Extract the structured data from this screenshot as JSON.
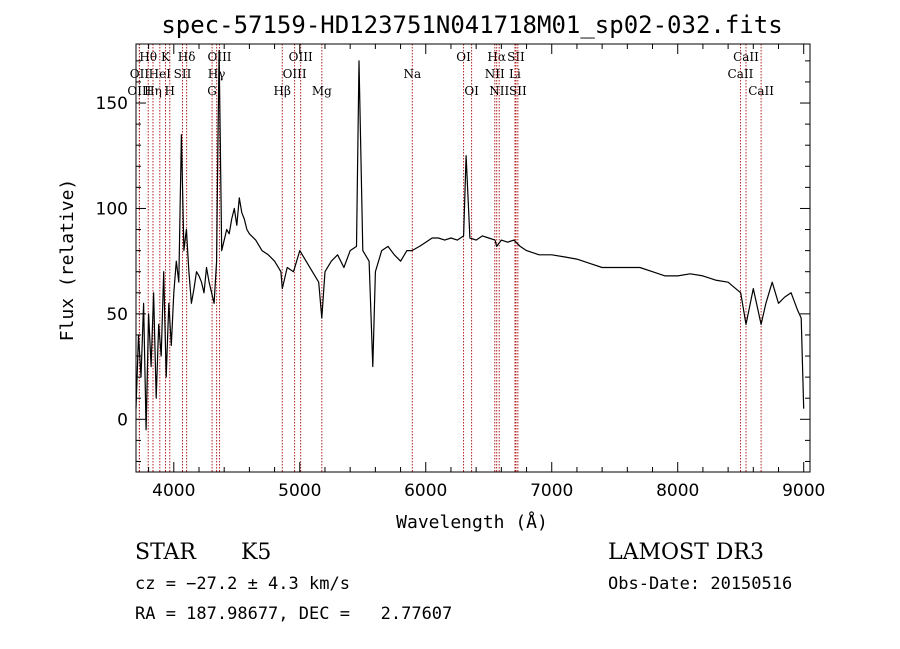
{
  "chart_data": {
    "type": "line",
    "title": "spec-57159-HD123751N041718M01_sp02-032.fits",
    "xlabel": "Wavelength (Å)",
    "ylabel": "Flux (relative)",
    "xlim": [
      3700,
      9050
    ],
    "ylim": [
      -25,
      178
    ],
    "x_ticks": [
      4000,
      5000,
      6000,
      7000,
      8000,
      9000
    ],
    "y_ticks": [
      0,
      50,
      100,
      150
    ],
    "grid": false,
    "series": [
      {
        "x": [
          3700,
          3720,
          3740,
          3760,
          3780,
          3800,
          3820,
          3840,
          3860,
          3880,
          3900,
          3920,
          3940,
          3960,
          3980,
          4000,
          4020,
          4040,
          4060,
          4080,
          4100,
          4120,
          4140,
          4160,
          4180,
          4200,
          4220,
          4240,
          4260,
          4280,
          4300,
          4320,
          4340,
          4350,
          4360,
          4380,
          4400,
          4420,
          4440,
          4460,
          4480,
          4500,
          4520,
          4540,
          4560,
          4580,
          4600,
          4650,
          4700,
          4750,
          4800,
          4850,
          4861,
          4900,
          4950,
          5000,
          5050,
          5100,
          5150,
          5175,
          5200,
          5250,
          5300,
          5350,
          5400,
          5450,
          5470,
          5500,
          5550,
          5580,
          5600,
          5650,
          5700,
          5750,
          5800,
          5850,
          5890,
          5950,
          6000,
          6050,
          6100,
          6150,
          6200,
          6250,
          6300,
          6320,
          6350,
          6400,
          6450,
          6500,
          6550,
          6563,
          6600,
          6650,
          6700,
          6750,
          6800,
          6900,
          7000,
          7100,
          7200,
          7300,
          7400,
          7500,
          7600,
          7700,
          7800,
          7900,
          8000,
          8100,
          8200,
          8300,
          8400,
          8500,
          8542,
          8600,
          8662,
          8700,
          8750,
          8800,
          8850,
          8900,
          8950,
          8980,
          9000
        ],
        "values": [
          5,
          40,
          20,
          55,
          -5,
          50,
          25,
          60,
          10,
          45,
          30,
          70,
          20,
          55,
          35,
          60,
          75,
          65,
          135,
          80,
          90,
          70,
          55,
          62,
          70,
          68,
          65,
          60,
          72,
          65,
          60,
          55,
          75,
          130,
          175,
          80,
          85,
          90,
          88,
          95,
          100,
          92,
          105,
          98,
          95,
          90,
          88,
          85,
          80,
          78,
          75,
          70,
          62,
          72,
          70,
          80,
          75,
          70,
          65,
          48,
          70,
          75,
          78,
          72,
          80,
          82,
          170,
          80,
          75,
          25,
          70,
          80,
          82,
          78,
          75,
          80,
          80,
          82,
          84,
          86,
          86,
          85,
          86,
          85,
          87,
          125,
          86,
          85,
          87,
          86,
          85,
          82,
          85,
          84,
          85,
          82,
          80,
          78,
          78,
          77,
          76,
          74,
          72,
          72,
          72,
          72,
          70,
          68,
          68,
          69,
          68,
          66,
          65,
          60,
          45,
          62,
          45,
          55,
          65,
          55,
          58,
          60,
          52,
          48,
          5
        ],
        "color": "#000000"
      }
    ],
    "line_markers": [
      {
        "label": "Hθ",
        "x": 3797,
        "row": 1
      },
      {
        "label": "OII",
        "x": 3727,
        "row": 2
      },
      {
        "label": "OIII",
        "x": 3727,
        "row": 3
      },
      {
        "label": "Hη",
        "x": 3835,
        "row": 3
      },
      {
        "label": "K",
        "x": 3934,
        "row": 1
      },
      {
        "label": "HeI",
        "x": 3889,
        "row": 2
      },
      {
        "label": "H",
        "x": 3968,
        "row": 3
      },
      {
        "label": "Hδ",
        "x": 4102,
        "row": 1
      },
      {
        "label": "SII",
        "x": 4069,
        "row": 2
      },
      {
        "label": "OIII",
        "x": 4363,
        "row": 1
      },
      {
        "label": "Hγ",
        "x": 4340,
        "row": 2
      },
      {
        "label": "G",
        "x": 4304,
        "row": 3
      },
      {
        "label": "OIII",
        "x": 5007,
        "row": 1
      },
      {
        "label": "OIII",
        "x": 4959,
        "row": 2
      },
      {
        "label": "Hβ",
        "x": 4861,
        "row": 3
      },
      {
        "label": "Mg",
        "x": 5175,
        "row": 3
      },
      {
        "label": "Na",
        "x": 5893,
        "row": 2
      },
      {
        "label": "OI",
        "x": 6300,
        "row": 1
      },
      {
        "label": "OI",
        "x": 6364,
        "row": 3
      },
      {
        "label": "Hα",
        "x": 6563,
        "row": 1
      },
      {
        "label": "SII",
        "x": 6716,
        "row": 1
      },
      {
        "label": "NII",
        "x": 6548,
        "row": 2
      },
      {
        "label": "Li",
        "x": 6708,
        "row": 2
      },
      {
        "label": "NII",
        "x": 6583,
        "row": 3
      },
      {
        "label": "SII",
        "x": 6731,
        "row": 3
      },
      {
        "label": "CaII",
        "x": 8542,
        "row": 1
      },
      {
        "label": "CaII",
        "x": 8498,
        "row": 2
      },
      {
        "label": "CaII",
        "x": 8662,
        "row": 3
      }
    ],
    "marker_color": "#b22222"
  },
  "info": {
    "object_class": "STAR",
    "subclass": "K5",
    "survey": "LAMOST DR3",
    "cz": "cz = −27.2 ± 4.3 km/s",
    "obs_date": "Obs-Date: 20150516",
    "coords": "RA = 187.98677, DEC =   2.77607"
  }
}
